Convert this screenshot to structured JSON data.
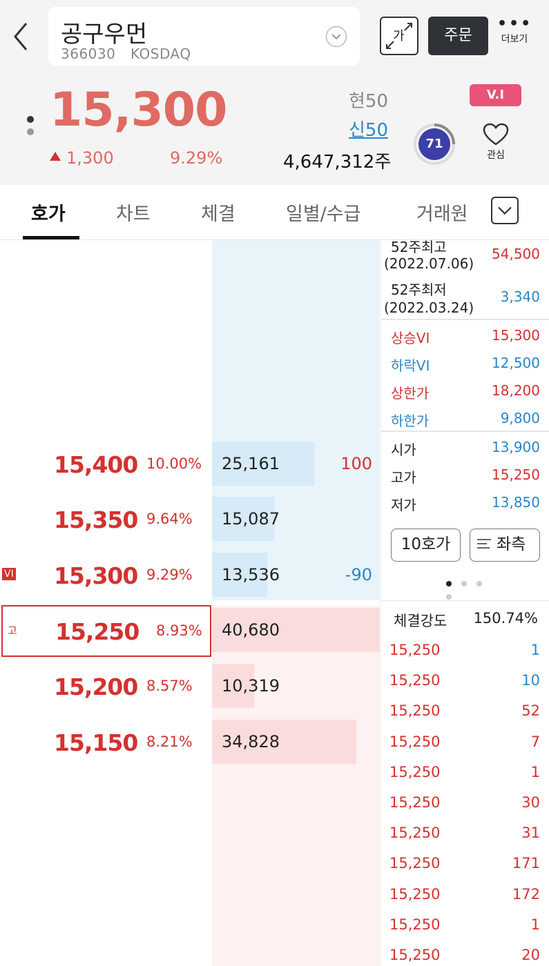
{
  "header": {
    "stock_name": "공구우먼",
    "stock_code": "366030",
    "market": "KOSDAQ",
    "font_size_label": "가",
    "order_label": "주문",
    "more_label": "더보기",
    "current_price": "15,300",
    "change_amount": "1,300",
    "change_percent": "9.29%",
    "cur50": "현50",
    "new50": "신50",
    "volume": "4,647,312주",
    "vi_badge": "V.I",
    "score": "71",
    "watch_label": "관심"
  },
  "tabs": [
    {
      "label": "호가",
      "active": true
    },
    {
      "label": "차트"
    },
    {
      "label": "체결"
    },
    {
      "label": "일별/수급"
    },
    {
      "label": "거래원"
    }
  ],
  "asks": [
    {
      "price": "15,400",
      "pct": "10.00%",
      "qty": "25,161",
      "change": "100",
      "change_color": "#d3322f",
      "bar_level": 0.61
    },
    {
      "price": "15,350",
      "pct": "9.64%",
      "qty": "15,087",
      "change": "",
      "bar_level": 0.37
    },
    {
      "price": "15,300",
      "pct": "9.29%",
      "qty": "13,536",
      "change": "-90",
      "change_color": "#2a87c8",
      "bar_level": 0.33,
      "tag": "VI"
    }
  ],
  "bids": [
    {
      "price": "15,250",
      "pct": "8.93%",
      "qty": "40,680",
      "bar_level": 1.0,
      "tag": "고"
    },
    {
      "price": "15,200",
      "pct": "8.57%",
      "qty": "10,319",
      "bar_level": 0.25
    },
    {
      "price": "15,150",
      "pct": "8.21%",
      "qty": "34,828",
      "bar_level": 0.86
    }
  ],
  "info": {
    "high52_label": "52주최고",
    "high52_date": "(2022.07.06)",
    "high52_value": "54,500",
    "low52_label": "52주최저",
    "low52_date": "(2022.03.24)",
    "low52_value": "3,340",
    "up_vi_label": "상승VI",
    "up_vi_value": "15,300",
    "down_vi_label": "하락VI",
    "down_vi_value": "12,500",
    "upper_limit_label": "상한가",
    "upper_limit_value": "18,200",
    "lower_limit_label": "하한가",
    "lower_limit_value": "9,800",
    "open_label": "시가",
    "open_value": "13,900",
    "high_label": "고가",
    "high_value": "15,250",
    "low_label": "저가",
    "low_value": "13,850",
    "ten_button": "10호가",
    "left_button": "좌측"
  },
  "strength": {
    "label": "체결강도",
    "value": "150.74%"
  },
  "trades": [
    {
      "price": "15,250",
      "qty": "1",
      "color": "#2a87c8"
    },
    {
      "price": "15,250",
      "qty": "10",
      "color": "#2a87c8"
    },
    {
      "price": "15,250",
      "qty": "52",
      "color": "#d3322f"
    },
    {
      "price": "15,250",
      "qty": "7",
      "color": "#d3322f"
    },
    {
      "price": "15,250",
      "qty": "1",
      "color": "#d3322f"
    },
    {
      "price": "15,250",
      "qty": "30",
      "color": "#d3322f"
    },
    {
      "price": "15,250",
      "qty": "31",
      "color": "#d3322f"
    },
    {
      "price": "15,250",
      "qty": "171",
      "color": "#d3322f"
    },
    {
      "price": "15,250",
      "qty": "172",
      "color": "#d3322f"
    },
    {
      "price": "15,250",
      "qty": "1",
      "color": "#d3322f"
    },
    {
      "price": "15,250",
      "qty": "20",
      "color": "#d3322f"
    }
  ],
  "colors": {
    "up": "#d3322f",
    "down": "#2a87c8",
    "ask_bar": "#d6eaf8",
    "bid_bar": "#fbdcdc"
  }
}
